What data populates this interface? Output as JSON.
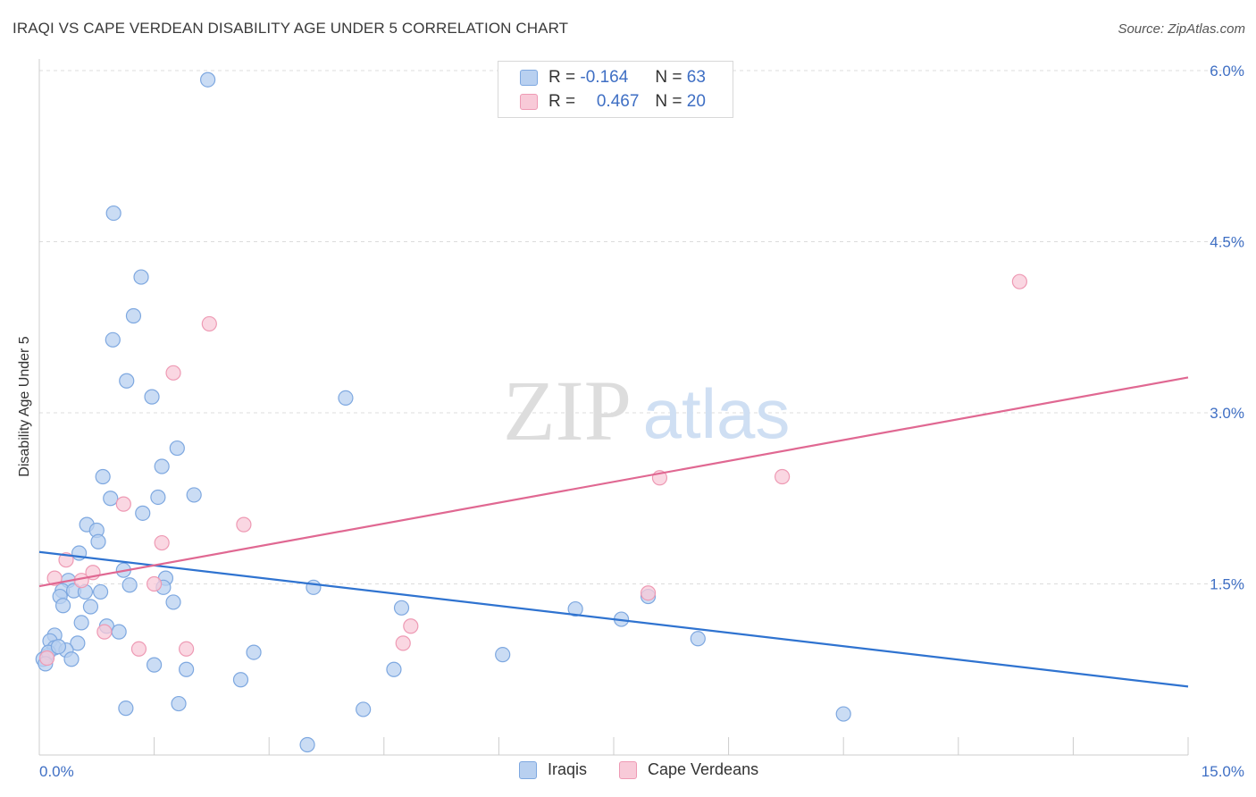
{
  "title": "IRAQI VS CAPE VERDEAN DISABILITY AGE UNDER 5 CORRELATION CHART",
  "source": "Source: ZipAtlas.com",
  "watermark": {
    "zip": "ZIP",
    "atlas": "atlas"
  },
  "legend_top": {
    "rows": [
      {
        "r_label": "R =",
        "r_value": "-0.164",
        "n_label": "N =",
        "n_value": "63"
      },
      {
        "r_label": "R =",
        "r_value": "0.467",
        "n_label": "N =",
        "n_value": "20"
      }
    ]
  },
  "legend_bottom": {
    "series1": "Iraqis",
    "series2": "Cape Verdeans"
  },
  "colors": {
    "iraqi_fill": "#b8d0f0",
    "iraqi_stroke": "#7ea8e0",
    "iraqi_line": "#2f73d0",
    "cape_fill": "#f8cad8",
    "cape_stroke": "#ee9ab4",
    "cape_line": "#e06892",
    "tick_label": "#3f6fc4",
    "grid": "#dcdcdc"
  },
  "chart_data": {
    "type": "scatter",
    "title": "IRAQI VS CAPE VERDEAN DISABILITY AGE UNDER 5 CORRELATION CHART",
    "xlabel": "",
    "ylabel": "Disability Age Under 5",
    "xlim": [
      0,
      15
    ],
    "ylim": [
      0,
      6.2
    ],
    "x_tick_labels": [
      "0.0%",
      "15.0%"
    ],
    "y_ticks": [
      1.5,
      3.0,
      4.5,
      6.0
    ],
    "y_tick_labels": [
      "1.5%",
      "3.0%",
      "4.5%",
      "6.0%"
    ],
    "series": [
      {
        "name": "Iraqis",
        "r": -0.164,
        "n": 63,
        "trend": {
          "x": [
            0,
            15
          ],
          "y": [
            1.78,
            0.6
          ]
        },
        "points": [
          {
            "x": 2.2,
            "y": 5.92
          },
          {
            "x": 0.97,
            "y": 4.75
          },
          {
            "x": 1.33,
            "y": 4.19
          },
          {
            "x": 1.23,
            "y": 3.85
          },
          {
            "x": 0.96,
            "y": 3.64
          },
          {
            "x": 1.14,
            "y": 3.28
          },
          {
            "x": 1.47,
            "y": 3.14
          },
          {
            "x": 4.0,
            "y": 3.13
          },
          {
            "x": 1.8,
            "y": 2.69
          },
          {
            "x": 1.6,
            "y": 2.53
          },
          {
            "x": 0.83,
            "y": 2.44
          },
          {
            "x": 0.93,
            "y": 2.25
          },
          {
            "x": 1.55,
            "y": 2.26
          },
          {
            "x": 2.02,
            "y": 2.28
          },
          {
            "x": 1.35,
            "y": 2.12
          },
          {
            "x": 0.62,
            "y": 2.02
          },
          {
            "x": 0.75,
            "y": 1.97
          },
          {
            "x": 0.77,
            "y": 1.87
          },
          {
            "x": 0.52,
            "y": 1.77
          },
          {
            "x": 1.1,
            "y": 1.62
          },
          {
            "x": 1.65,
            "y": 1.55
          },
          {
            "x": 0.38,
            "y": 1.53
          },
          {
            "x": 1.18,
            "y": 1.49
          },
          {
            "x": 1.62,
            "y": 1.47
          },
          {
            "x": 3.58,
            "y": 1.47
          },
          {
            "x": 0.3,
            "y": 1.44
          },
          {
            "x": 0.45,
            "y": 1.44
          },
          {
            "x": 0.6,
            "y": 1.43
          },
          {
            "x": 0.8,
            "y": 1.43
          },
          {
            "x": 0.27,
            "y": 1.39
          },
          {
            "x": 1.75,
            "y": 1.34
          },
          {
            "x": 0.31,
            "y": 1.31
          },
          {
            "x": 0.67,
            "y": 1.3
          },
          {
            "x": 4.73,
            "y": 1.29
          },
          {
            "x": 7.0,
            "y": 1.28
          },
          {
            "x": 7.95,
            "y": 1.39
          },
          {
            "x": 7.6,
            "y": 1.19
          },
          {
            "x": 0.55,
            "y": 1.16
          },
          {
            "x": 0.88,
            "y": 1.13
          },
          {
            "x": 1.04,
            "y": 1.08
          },
          {
            "x": 0.2,
            "y": 1.05
          },
          {
            "x": 0.14,
            "y": 1.0
          },
          {
            "x": 8.6,
            "y": 1.02
          },
          {
            "x": 0.5,
            "y": 0.98
          },
          {
            "x": 0.2,
            "y": 0.94
          },
          {
            "x": 0.35,
            "y": 0.92
          },
          {
            "x": 2.8,
            "y": 0.9
          },
          {
            "x": 6.05,
            "y": 0.88
          },
          {
            "x": 0.1,
            "y": 0.87
          },
          {
            "x": 0.05,
            "y": 0.84
          },
          {
            "x": 0.42,
            "y": 0.84
          },
          {
            "x": 1.5,
            "y": 0.79
          },
          {
            "x": 1.92,
            "y": 0.75
          },
          {
            "x": 4.63,
            "y": 0.75
          },
          {
            "x": 2.63,
            "y": 0.66
          },
          {
            "x": 1.82,
            "y": 0.45
          },
          {
            "x": 1.13,
            "y": 0.41
          },
          {
            "x": 4.23,
            "y": 0.4
          },
          {
            "x": 10.5,
            "y": 0.36
          },
          {
            "x": 3.5,
            "y": 0.09
          },
          {
            "x": 0.12,
            "y": 0.9
          },
          {
            "x": 0.08,
            "y": 0.8
          },
          {
            "x": 0.25,
            "y": 0.95
          }
        ]
      },
      {
        "name": "Cape Verdeans",
        "r": 0.467,
        "n": 20,
        "trend": {
          "x": [
            0,
            15
          ],
          "y": [
            1.48,
            3.31
          ]
        },
        "points": [
          {
            "x": 12.8,
            "y": 4.15
          },
          {
            "x": 2.22,
            "y": 3.78
          },
          {
            "x": 1.75,
            "y": 3.35
          },
          {
            "x": 8.1,
            "y": 2.43
          },
          {
            "x": 9.7,
            "y": 2.44
          },
          {
            "x": 1.1,
            "y": 2.2
          },
          {
            "x": 2.67,
            "y": 2.02
          },
          {
            "x": 1.6,
            "y": 1.86
          },
          {
            "x": 0.35,
            "y": 1.71
          },
          {
            "x": 0.7,
            "y": 1.6
          },
          {
            "x": 0.2,
            "y": 1.55
          },
          {
            "x": 1.5,
            "y": 1.5
          },
          {
            "x": 0.55,
            "y": 1.53
          },
          {
            "x": 7.95,
            "y": 1.42
          },
          {
            "x": 4.85,
            "y": 1.13
          },
          {
            "x": 0.85,
            "y": 1.08
          },
          {
            "x": 4.75,
            "y": 0.98
          },
          {
            "x": 1.3,
            "y": 0.93
          },
          {
            "x": 1.92,
            "y": 0.93
          },
          {
            "x": 0.1,
            "y": 0.85
          }
        ]
      }
    ]
  }
}
